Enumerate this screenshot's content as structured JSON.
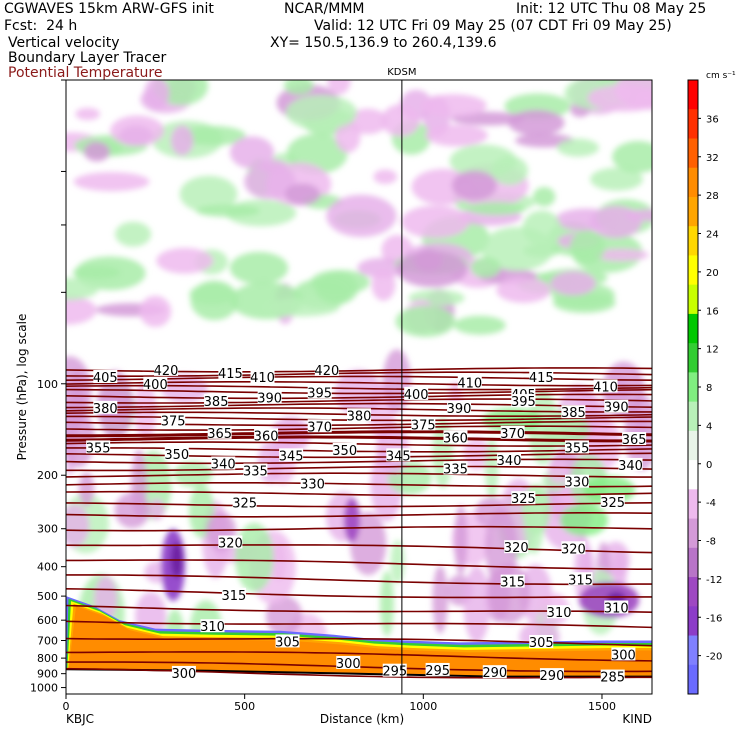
{
  "header": {
    "model": "CGWAVES 15km ARW-GFS init",
    "org": "NCAR/MMM",
    "init": "Init: 12 UTC Thu 08 May 25",
    "fcst": "Fcst:  24 h",
    "valid": "Valid: 12 UTC Fri 09 May 25 (07 CDT Fri 09 May 25)",
    "field1": "Vertical velocity",
    "field2": "Boundary Layer Tracer",
    "field3": "Potential Temperature",
    "xy": "XY= 150.5,136.9 to 260.4,139.6"
  },
  "colors": {
    "theta": "#7a0000",
    "pbl_orange": "#ff8c00",
    "background": "#ffffff"
  },
  "chart_data": {
    "type": "heatmap",
    "title": "",
    "marker_label": "KDSM",
    "marker_x_km": 940,
    "xlabel": "Distance (km)",
    "ylabel": "Pressure (hPa), log scale",
    "xlim": [
      0,
      1640
    ],
    "ylim": [
      1050,
      10
    ],
    "x_ticks": [
      0,
      500,
      1000,
      1500
    ],
    "y_ticks": [
      100,
      200,
      300,
      400,
      500,
      600,
      700,
      800,
      900,
      1000
    ],
    "left_station": "KBJC",
    "right_station": "KIND",
    "colorbar": {
      "units": "cm s⁻¹",
      "tick_labels": [
        "36",
        "32",
        "28",
        "24",
        "20",
        "16",
        "12",
        "8",
        "4",
        "0",
        "-4",
        "-8",
        "-12",
        "-16",
        "-20"
      ],
      "tick_values": [
        36,
        32,
        28,
        24,
        20,
        16,
        12,
        8,
        4,
        0,
        -4,
        -8,
        -12,
        -16,
        -20
      ],
      "colors": [
        "#6b6bff",
        "#8080ff",
        "#8c3cc8",
        "#9e48c2",
        "#b874c8",
        "#d49ad8",
        "#eebaee",
        "#ffffff",
        "#e8f4e8",
        "#b8f0b8",
        "#80ee80",
        "#32cd32",
        "#00c800",
        "#c8ff00",
        "#ffff00",
        "#ffd700",
        "#ffa500",
        "#ff8c00",
        "#ff6000",
        "#ff3000",
        "#ff0000"
      ]
    },
    "isentrope_labels": [
      {
        "text": "420",
        "x": 280,
        "p": 90
      },
      {
        "text": "415",
        "x": 460,
        "p": 92
      },
      {
        "text": "420",
        "x": 730,
        "p": 90
      },
      {
        "text": "405",
        "x": 110,
        "p": 95
      },
      {
        "text": "400",
        "x": 250,
        "p": 100
      },
      {
        "text": "410",
        "x": 550,
        "p": 95
      },
      {
        "text": "410",
        "x": 1130,
        "p": 99
      },
      {
        "text": "415",
        "x": 1330,
        "p": 95
      },
      {
        "text": "405",
        "x": 1280,
        "p": 108
      },
      {
        "text": "410",
        "x": 1510,
        "p": 102
      },
      {
        "text": "380",
        "x": 110,
        "p": 120
      },
      {
        "text": "385",
        "x": 420,
        "p": 114
      },
      {
        "text": "390",
        "x": 570,
        "p": 111
      },
      {
        "text": "395",
        "x": 710,
        "p": 107
      },
      {
        "text": "400",
        "x": 980,
        "p": 108
      },
      {
        "text": "390",
        "x": 1100,
        "p": 120
      },
      {
        "text": "395",
        "x": 1280,
        "p": 114
      },
      {
        "text": "385",
        "x": 1420,
        "p": 124
      },
      {
        "text": "390",
        "x": 1540,
        "p": 119
      },
      {
        "text": "375",
        "x": 300,
        "p": 132
      },
      {
        "text": "380",
        "x": 820,
        "p": 127
      },
      {
        "text": "365",
        "x": 430,
        "p": 145
      },
      {
        "text": "360",
        "x": 560,
        "p": 148
      },
      {
        "text": "370",
        "x": 710,
        "p": 138
      },
      {
        "text": "375",
        "x": 1000,
        "p": 136
      },
      {
        "text": "360",
        "x": 1090,
        "p": 150
      },
      {
        "text": "370",
        "x": 1250,
        "p": 145
      },
      {
        "text": "365",
        "x": 1590,
        "p": 152
      },
      {
        "text": "355",
        "x": 90,
        "p": 162
      },
      {
        "text": "350",
        "x": 310,
        "p": 170
      },
      {
        "text": "340",
        "x": 440,
        "p": 183
      },
      {
        "text": "345",
        "x": 630,
        "p": 172
      },
      {
        "text": "350",
        "x": 780,
        "p": 165
      },
      {
        "text": "345",
        "x": 930,
        "p": 172
      },
      {
        "text": "340",
        "x": 1240,
        "p": 178
      },
      {
        "text": "355",
        "x": 1430,
        "p": 162
      },
      {
        "text": "340",
        "x": 1580,
        "p": 185
      },
      {
        "text": "335",
        "x": 530,
        "p": 193
      },
      {
        "text": "335",
        "x": 1090,
        "p": 190
      },
      {
        "text": "330",
        "x": 690,
        "p": 213
      },
      {
        "text": "330",
        "x": 1430,
        "p": 210
      },
      {
        "text": "325",
        "x": 500,
        "p": 246
      },
      {
        "text": "325",
        "x": 1280,
        "p": 238
      },
      {
        "text": "325",
        "x": 1530,
        "p": 245
      },
      {
        "text": "320",
        "x": 460,
        "p": 333
      },
      {
        "text": "320",
        "x": 1260,
        "p": 345
      },
      {
        "text": "320",
        "x": 1420,
        "p": 348
      },
      {
        "text": "315",
        "x": 470,
        "p": 495
      },
      {
        "text": "315",
        "x": 1250,
        "p": 448
      },
      {
        "text": "315",
        "x": 1440,
        "p": 440
      },
      {
        "text": "310",
        "x": 410,
        "p": 628
      },
      {
        "text": "310",
        "x": 1380,
        "p": 565
      },
      {
        "text": "310",
        "x": 1540,
        "p": 545
      },
      {
        "text": "305",
        "x": 620,
        "p": 705
      },
      {
        "text": "305",
        "x": 1330,
        "p": 708
      },
      {
        "text": "300",
        "x": 330,
        "p": 895
      },
      {
        "text": "300",
        "x": 790,
        "p": 830
      },
      {
        "text": "300",
        "x": 1560,
        "p": 778
      },
      {
        "text": "295",
        "x": 920,
        "p": 880
      },
      {
        "text": "295",
        "x": 1040,
        "p": 875
      },
      {
        "text": "290",
        "x": 1200,
        "p": 890
      },
      {
        "text": "290",
        "x": 1360,
        "p": 910
      },
      {
        "text": "285",
        "x": 1530,
        "p": 920
      }
    ]
  }
}
